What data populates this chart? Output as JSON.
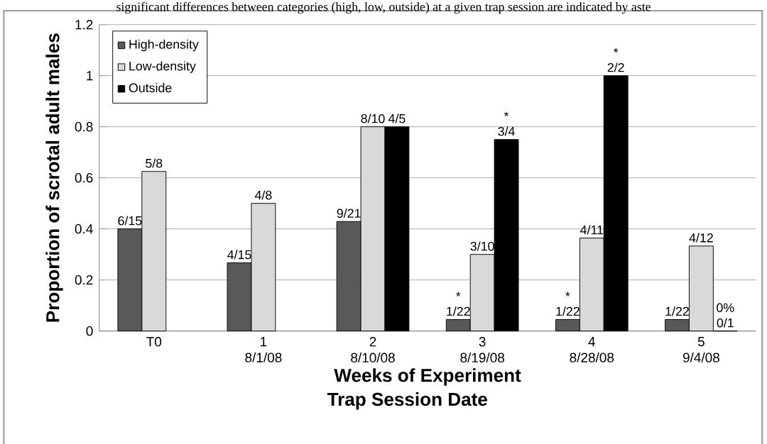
{
  "chart_data": {
    "type": "bar",
    "ylabel": "Proportion  of scrotal adult males",
    "xlabel": "Weeks of Experiment",
    "categories": [
      "T0",
      "1 8/1/08",
      "2 8/10/08",
      "3 8/19/08",
      "4 8/28/08",
      "5 9/4/08"
    ],
    "series": [
      {
        "name": "High-density",
        "color": "#595959",
        "values": [
          0.4,
          0.267,
          0.429,
          0.045,
          0.045,
          0.045
        ],
        "value_labels": [
          "6/15",
          "4/15",
          "9/21",
          "* 1/22",
          "* 1/22",
          "1/22"
        ]
      },
      {
        "name": "Low-density",
        "color": "#d9d9d9",
        "values": [
          0.625,
          0.5,
          0.8,
          0.3,
          0.364,
          0.333
        ],
        "value_labels": [
          "5/8",
          "4/8",
          "8/10",
          "3/10",
          "4/11",
          "4/12"
        ]
      },
      {
        "name": "Outside",
        "color": "#000000",
        "values": [
          null,
          null,
          0.8,
          0.75,
          1,
          0
        ],
        "value_labels": [
          null,
          null,
          "4/5",
          "* 3/4",
          "* 2/2",
          "0% 0/1"
        ]
      }
    ],
    "ylim": [
      0,
      1.2
    ],
    "yticks": [
      0,
      0.2,
      0.4,
      0.6,
      0.8,
      1,
      1.2
    ],
    "grid": "y",
    "legend": "top left",
    "annotations": [
      "significant differences between categories (high, low, outside) at a given trap session are indicated by aste",
      "Trap Session Date"
    ]
  }
}
